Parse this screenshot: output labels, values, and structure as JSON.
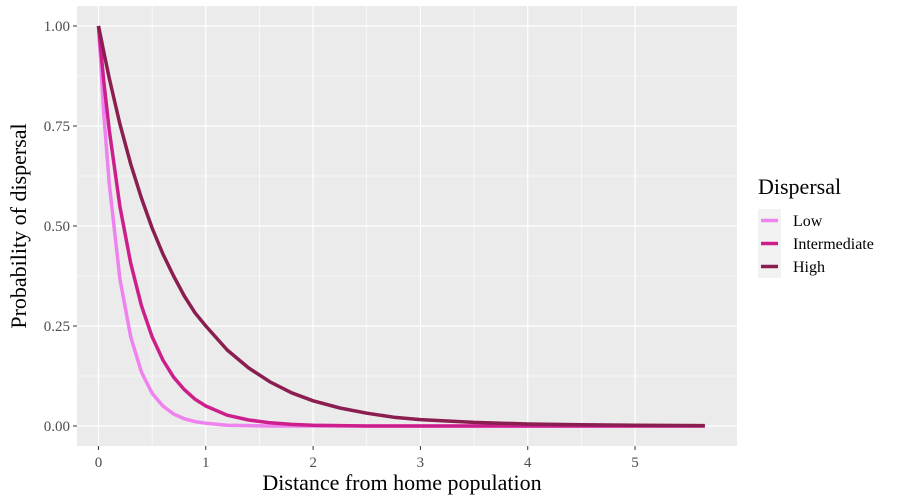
{
  "chart_data": {
    "type": "line",
    "xlabel": "Distance from home population",
    "ylabel": "Probability of dispersal",
    "xlim": [
      -0.2,
      5.95
    ],
    "ylim": [
      -0.05,
      1.05
    ],
    "x_ticks": [
      0,
      1,
      2,
      3,
      4,
      5
    ],
    "x_tick_labels": [
      "0",
      "1",
      "2",
      "3",
      "4",
      "5"
    ],
    "y_ticks": [
      0,
      0.25,
      0.5,
      0.75,
      1
    ],
    "y_tick_labels": [
      "0.00",
      "0.25",
      "0.50",
      "0.75",
      "1.00"
    ],
    "grid": true,
    "legend": {
      "title": "Dispersal",
      "position": "right"
    },
    "x": [
      0,
      0.05,
      0.1,
      0.2,
      0.3,
      0.4,
      0.5,
      0.6,
      0.7,
      0.8,
      0.9,
      1.0,
      1.2,
      1.4,
      1.6,
      1.8,
      2.0,
      2.25,
      2.5,
      2.75,
      3.0,
      3.5,
      4.0,
      4.5,
      5.0,
      5.65
    ],
    "series": [
      {
        "name": "Low",
        "color": "#ee82ee",
        "values": [
          1.0,
          0.78,
          0.607,
          0.368,
          0.223,
          0.135,
          0.082,
          0.05,
          0.03,
          0.018,
          0.011,
          0.007,
          0.002,
          0.001,
          0.0,
          0.0,
          0.0,
          0.0,
          0.0,
          0.0,
          0.0,
          0.0,
          0.0,
          0.0,
          0.0,
          0.0
        ]
      },
      {
        "name": "Intermediate",
        "color": "#cd1f8b",
        "values": [
          1.0,
          0.861,
          0.741,
          0.549,
          0.407,
          0.301,
          0.223,
          0.165,
          0.122,
          0.091,
          0.067,
          0.05,
          0.027,
          0.015,
          0.008,
          0.004,
          0.002,
          0.001,
          0.0,
          0.0,
          0.0,
          0.0,
          0.0,
          0.0,
          0.0,
          0.0
        ]
      },
      {
        "name": "High",
        "color": "#8b1e50",
        "values": [
          1.0,
          0.935,
          0.87,
          0.755,
          0.655,
          0.57,
          0.495,
          0.43,
          0.375,
          0.325,
          0.283,
          0.25,
          0.19,
          0.145,
          0.11,
          0.083,
          0.063,
          0.045,
          0.032,
          0.022,
          0.016,
          0.009,
          0.005,
          0.003,
          0.002,
          0.001
        ]
      }
    ]
  }
}
